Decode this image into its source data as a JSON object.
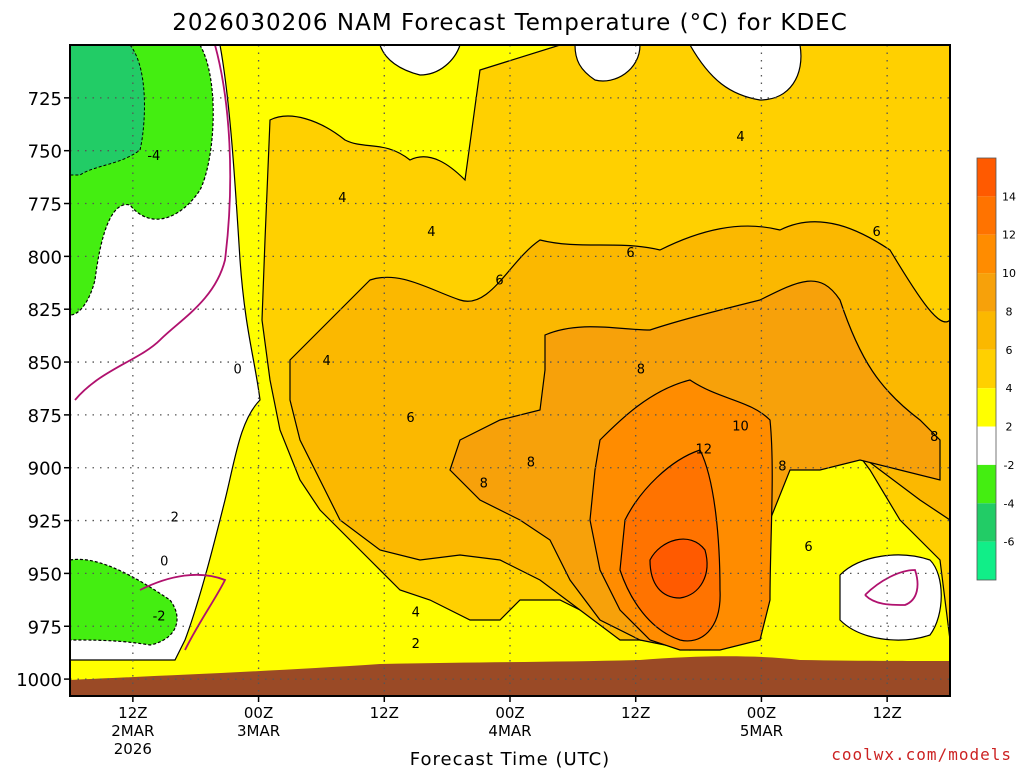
{
  "title": "2026030206 NAM Forecast Temperature (°C) for KDEC",
  "credit": "coolwx.com/models",
  "colors": {
    "background": "#ffffff",
    "ground": "#9a4a26",
    "zero_line": "#b0116e",
    "grid": "#555555",
    "credit": "#cc2222"
  },
  "chart_data": {
    "type": "heatmap",
    "title": "2026030206 NAM Forecast Temperature (°C) for KDEC",
    "xlabel": "Forecast Time (UTC)",
    "ylabel": "",
    "x_ticks": [
      {
        "hour": 6,
        "lines": [
          "12Z",
          "2MAR",
          "2026"
        ]
      },
      {
        "hour": 18,
        "lines": [
          "00Z",
          "3MAR"
        ]
      },
      {
        "hour": 30,
        "lines": [
          "12Z"
        ]
      },
      {
        "hour": 42,
        "lines": [
          "00Z",
          "4MAR"
        ]
      },
      {
        "hour": 54,
        "lines": [
          "12Z"
        ]
      },
      {
        "hour": 66,
        "lines": [
          "00Z",
          "5MAR"
        ]
      },
      {
        "hour": 78,
        "lines": [
          "12Z"
        ]
      }
    ],
    "x_range_hours": [
      0,
      84
    ],
    "y_ticks": [
      725,
      750,
      775,
      800,
      825,
      850,
      875,
      900,
      925,
      950,
      975,
      1000
    ],
    "y_range_hPa": [
      700,
      1008
    ],
    "grid": true,
    "colorbar": {
      "labels": [
        "14",
        "12",
        "10",
        "8",
        "6",
        "4",
        "2",
        "-2",
        "-4",
        "-6"
      ],
      "bins": [
        {
          "lo": 14,
          "hi": 16,
          "color": "#ff5a00"
        },
        {
          "lo": 12,
          "hi": 14,
          "color": "#ff7300"
        },
        {
          "lo": 10,
          "hi": 12,
          "color": "#ff8c00"
        },
        {
          "lo": 8,
          "hi": 10,
          "color": "#f7a10a"
        },
        {
          "lo": 6,
          "hi": 8,
          "color": "#fbb800"
        },
        {
          "lo": 4,
          "hi": 6,
          "color": "#ffd000"
        },
        {
          "lo": 2,
          "hi": 4,
          "color": "#ffff00"
        },
        {
          "lo": -2,
          "hi": 2,
          "color": "#ffffff"
        },
        {
          "lo": -4,
          "hi": -2,
          "color": "#44ee11"
        },
        {
          "lo": -6,
          "hi": -4,
          "color": "#22cc66"
        },
        {
          "lo": -8,
          "hi": -6,
          "color": "#11ee88"
        }
      ]
    },
    "contour_labels": [
      {
        "hour": 8.0,
        "p": 752,
        "text": "-4"
      },
      {
        "hour": 16.0,
        "p": 853,
        "text": "0"
      },
      {
        "hour": 9.0,
        "p": 944,
        "text": "0"
      },
      {
        "hour": 10.0,
        "p": 923,
        "text": "2"
      },
      {
        "hour": 8.5,
        "p": 970,
        "text": "-2"
      },
      {
        "hour": 26.0,
        "p": 772,
        "text": "4"
      },
      {
        "hour": 34.5,
        "p": 788,
        "text": "4"
      },
      {
        "hour": 24.5,
        "p": 849,
        "text": "4"
      },
      {
        "hour": 32.5,
        "p": 876,
        "text": "6"
      },
      {
        "hour": 41.0,
        "p": 811,
        "text": "6"
      },
      {
        "hour": 53.5,
        "p": 798,
        "text": "6"
      },
      {
        "hour": 77.0,
        "p": 788,
        "text": "6"
      },
      {
        "hour": 64.0,
        "p": 743,
        "text": "4"
      },
      {
        "hour": 54.5,
        "p": 853,
        "text": "8"
      },
      {
        "hour": 39.5,
        "p": 907,
        "text": "8"
      },
      {
        "hour": 44.0,
        "p": 897,
        "text": "8"
      },
      {
        "hour": 64.0,
        "p": 880,
        "text": "10"
      },
      {
        "hour": 60.5,
        "p": 891,
        "text": "12"
      },
      {
        "hour": 68.0,
        "p": 899,
        "text": "8"
      },
      {
        "hour": 70.5,
        "p": 937,
        "text": "6"
      },
      {
        "hour": 82.5,
        "p": 885,
        "text": "8"
      },
      {
        "hour": 33.0,
        "p": 968,
        "text": "4"
      },
      {
        "hour": 33.0,
        "p": 983,
        "text": "2"
      }
    ]
  }
}
